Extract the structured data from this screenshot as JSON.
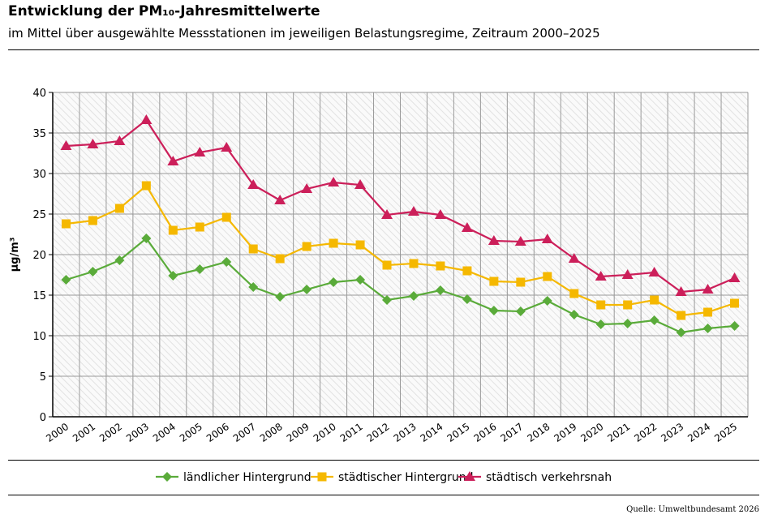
{
  "header": {
    "title": "Entwicklung der PM₁₀-Jahresmittelwerte",
    "subtitle": "im Mittel über ausgewählte Messstationen im jeweiligen Belastungsregime, Zeitraum 2000–2025"
  },
  "source": "Quelle: Umweltbundesamt 2026",
  "chart_data": {
    "type": "line",
    "title": "Entwicklung der PM₁₀-Jahresmittelwerte",
    "xlabel": "",
    "ylabel": "µg/m³",
    "ylim": [
      0,
      40
    ],
    "yticks": [
      0,
      5,
      10,
      15,
      20,
      25,
      30,
      35,
      40
    ],
    "grid": true,
    "legend_position": "bottom",
    "categories": [
      "2000",
      "2001",
      "2002",
      "2003",
      "2004",
      "2005",
      "2006",
      "2007",
      "2008",
      "2009",
      "2010",
      "2011",
      "2012",
      "2013",
      "2014",
      "2015",
      "2016",
      "2017",
      "2018",
      "2019",
      "2020",
      "2021",
      "2022",
      "2023",
      "2024",
      "2025"
    ],
    "series": [
      {
        "name": "ländlicher Hintergrund",
        "color": "#5aab3a",
        "marker": "diamond",
        "values": [
          16.9,
          17.9,
          19.3,
          22.0,
          17.4,
          18.2,
          19.1,
          16.0,
          14.8,
          15.7,
          16.6,
          16.9,
          14.4,
          14.9,
          15.6,
          14.5,
          13.1,
          13.0,
          14.3,
          12.6,
          11.4,
          11.5,
          11.9,
          10.4,
          10.9,
          11.2
        ]
      },
      {
        "name": "städtischer Hintergrund",
        "color": "#f5b800",
        "marker": "square",
        "values": [
          23.8,
          24.2,
          25.7,
          28.5,
          23.0,
          23.4,
          24.6,
          20.7,
          19.5,
          21.0,
          21.4,
          21.2,
          18.7,
          18.9,
          18.6,
          18.0,
          16.7,
          16.6,
          17.3,
          15.2,
          13.8,
          13.8,
          14.4,
          12.5,
          12.9,
          14.0
        ]
      },
      {
        "name": "städtisch verkehrsnah",
        "color": "#cc1f5a",
        "marker": "triangle",
        "values": [
          33.4,
          33.6,
          34.0,
          36.6,
          31.5,
          32.6,
          33.2,
          28.6,
          26.7,
          28.1,
          28.9,
          28.6,
          24.9,
          25.3,
          24.9,
          23.3,
          21.7,
          21.6,
          21.9,
          19.5,
          17.3,
          17.5,
          17.8,
          15.4,
          15.7,
          17.1
        ]
      }
    ]
  }
}
